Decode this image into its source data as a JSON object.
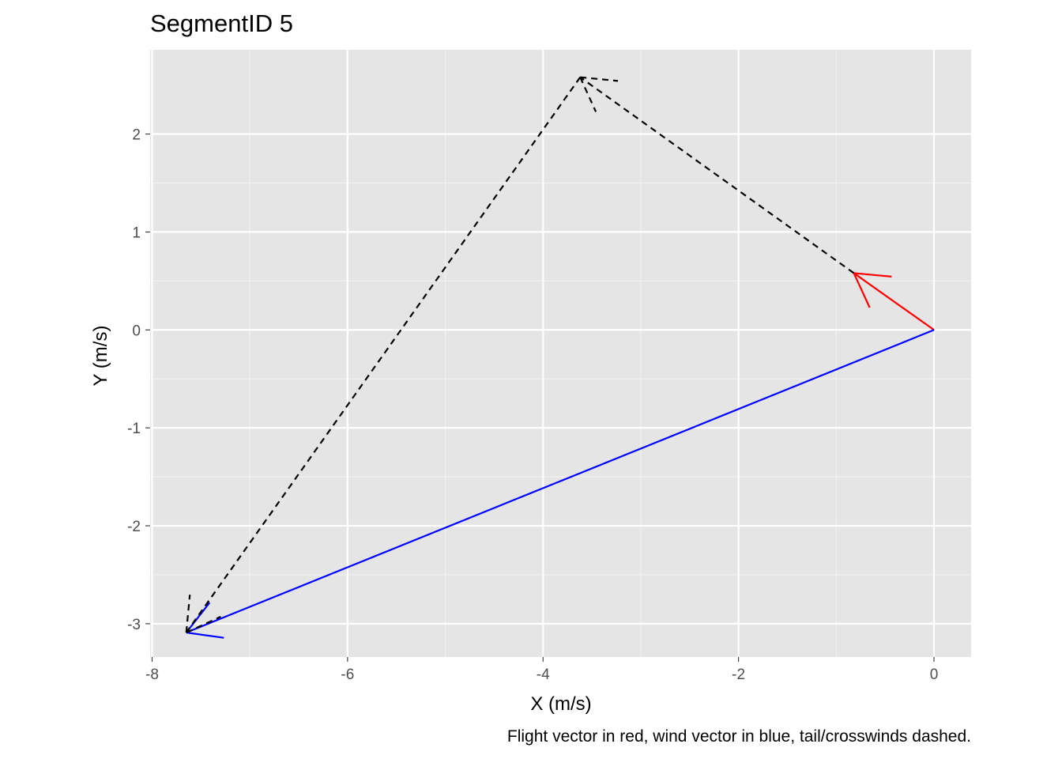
{
  "chart_data": {
    "type": "line",
    "title": "SegmentID 5",
    "xlabel": "X (m/s)",
    "ylabel": "Y (m/s)",
    "caption": "Flight vector in red, wind vector in blue, tail/crosswinds dashed.",
    "xlim": [
      -8.02,
      0.38
    ],
    "ylim": [
      -3.34,
      2.86
    ],
    "x_ticks": [
      -8,
      -6,
      -4,
      -2,
      0
    ],
    "y_ticks": [
      -3,
      -2,
      -1,
      0,
      1,
      2
    ],
    "x_tick_labels": [
      "-8",
      "-6",
      "-4",
      "-2",
      "0"
    ],
    "y_tick_labels": [
      "-3",
      "-2",
      "-1",
      "0",
      "1",
      "2"
    ],
    "grid": true,
    "legend": "none",
    "vectors": [
      {
        "from": [
          0,
          0
        ],
        "to": [
          -0.82,
          0.58
        ],
        "color": "#ff0000",
        "style": "solid"
      },
      {
        "from": [
          0,
          0
        ],
        "to": [
          -7.65,
          -3.09
        ],
        "color": "#0000ff",
        "style": "solid"
      },
      {
        "from": [
          -0.82,
          0.58
        ],
        "to": [
          -3.62,
          2.58
        ],
        "color": "#000000",
        "style": "dashed"
      },
      {
        "from": [
          -3.62,
          2.58
        ],
        "to": [
          -7.65,
          -3.09
        ],
        "color": "#000000",
        "style": "dashed"
      }
    ]
  }
}
